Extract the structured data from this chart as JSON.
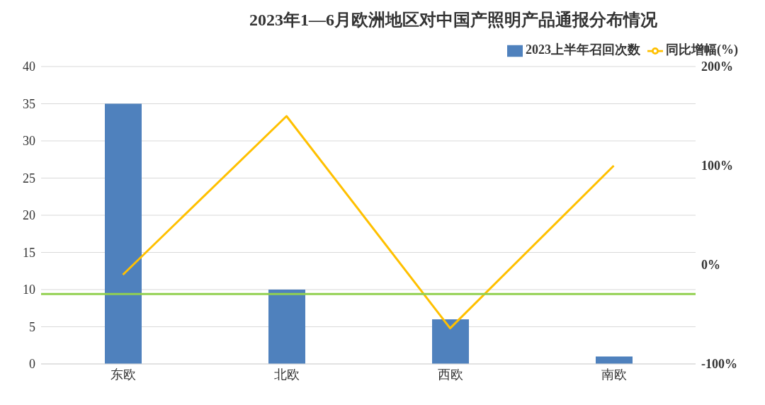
{
  "chart_data": {
    "type": "bar",
    "title": "2023年1—6月欧洲地区对中国产照明产品通报分布情况",
    "categories": [
      "东欧",
      "北欧",
      "西欧",
      "南欧"
    ],
    "series": [
      {
        "name": "2023上半年召回次数",
        "color": "#4f81bd",
        "values": [
          35,
          10,
          6,
          1
        ]
      },
      {
        "name": "同比增幅(%)",
        "type": "line",
        "axis": "y2",
        "color": "#ffc000",
        "values": [
          -10,
          150,
          -64,
          100
        ]
      }
    ],
    "ylim": [
      0,
      40
    ],
    "yticks": [
      0,
      5,
      10,
      15,
      20,
      25,
      30,
      35,
      40
    ],
    "y2lim": [
      -100,
      200
    ],
    "y2ticks": [
      {
        "value": -100,
        "label": "-100%"
      },
      {
        "value": 0,
        "label": "0%"
      },
      {
        "value": 100,
        "label": "100%"
      },
      {
        "value": 200,
        "label": "200%"
      }
    ],
    "ref_lines": [
      {
        "axis": "y",
        "value": 9.4,
        "color": "#92d050"
      }
    ],
    "grid": "y",
    "legend": "top right",
    "marker": "none"
  }
}
